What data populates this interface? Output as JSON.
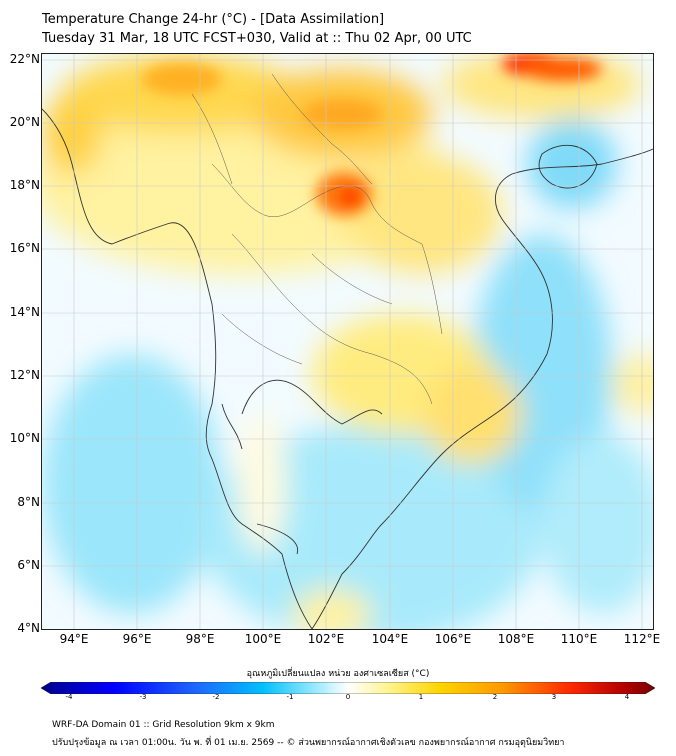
{
  "title": {
    "line1": "Temperature Change 24-hr (°C) - [Data Assimilation]",
    "line2": "Tuesday 31 Mar, 18 UTC FCST+030, Valid at :: Thu 02 Apr, 00 UTC"
  },
  "map": {
    "lat_labels": [
      "22°N",
      "20°N",
      "18°N",
      "16°N",
      "14°N",
      "12°N",
      "10°N",
      "8°N",
      "6°N",
      "4°N"
    ],
    "lon_labels": [
      "94°E",
      "96°E",
      "98°E",
      "100°E",
      "102°E",
      "104°E",
      "106°E",
      "108°E",
      "110°E",
      "112°E"
    ],
    "lat_range": [
      4,
      22.2
    ],
    "lon_range": [
      93,
      112.4
    ],
    "hot_spot": {
      "lat": 17.8,
      "lon": 102.6
    },
    "hot_spot_2": {
      "lat": 22.1,
      "lon": 109.0
    }
  },
  "colorbar": {
    "label": "อุณหภูมิเปลี่ยนแปลง หน่วย องศาเซลเซียส (°C)",
    "ticks": [
      "-4",
      "-3",
      "-2",
      "-1",
      "0",
      "1",
      "2",
      "3",
      "4"
    ],
    "range": [
      -4,
      4
    ],
    "colors": [
      "#00008b",
      "#0000ff",
      "#1e66ff",
      "#00bfff",
      "#7fe3ff",
      "#ffffff",
      "#fff59a",
      "#ffd400",
      "#ff9a00",
      "#ff2a00",
      "#b00000",
      "#7a0000"
    ]
  },
  "footer": {
    "line1": "WRF-DA Domain 01 :: Grid Resolution 9km x 9km",
    "line2": "ปรับปรุงข้อมูล ณ เวลา 01:00น. วัน พ. ที่ 01 เม.ย. 2569 -- © ส่วนพยากรณ์อากาศเชิงตัวเลข กองพยากรณ์อากาศ กรมอุตุนิยมวิทยา"
  }
}
